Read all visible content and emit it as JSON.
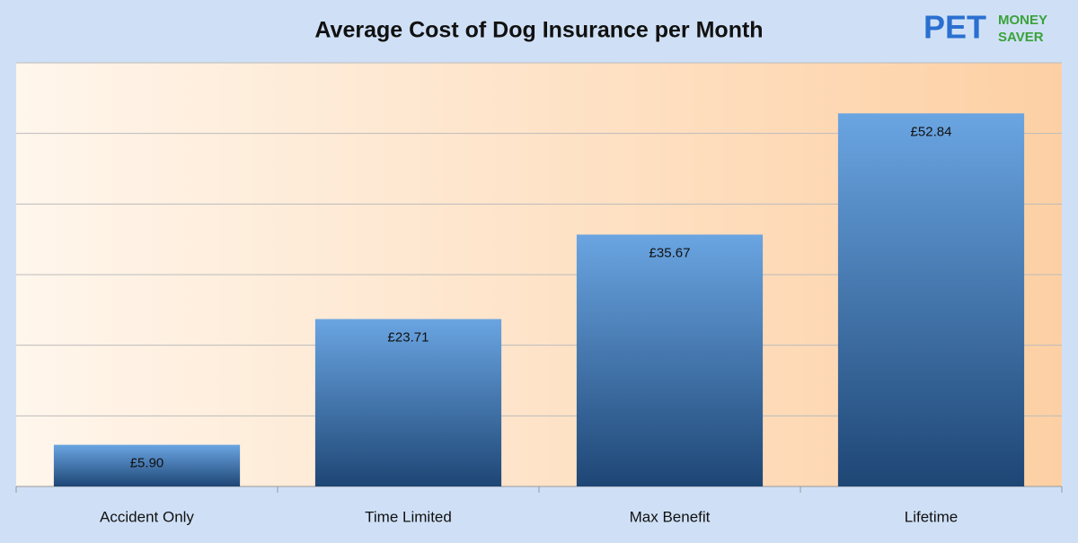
{
  "chart_data": {
    "type": "bar",
    "title": "Average Cost of Dog Insurance per Month",
    "categories": [
      "Accident Only",
      "Time Limited",
      "Max Benefit",
      "Lifetime"
    ],
    "values": [
      5.9,
      23.71,
      35.67,
      52.84
    ],
    "value_labels": [
      "£5.90",
      "£23.71",
      "£35.67",
      "£52.84"
    ],
    "color": "#3f74b0",
    "ylim": [
      0,
      60
    ],
    "yticks": [
      0,
      10,
      20,
      30,
      40,
      50,
      60
    ],
    "grid": true
  },
  "logo": {
    "pet": "PET",
    "money": "MONEY",
    "saver": "SAVER"
  }
}
